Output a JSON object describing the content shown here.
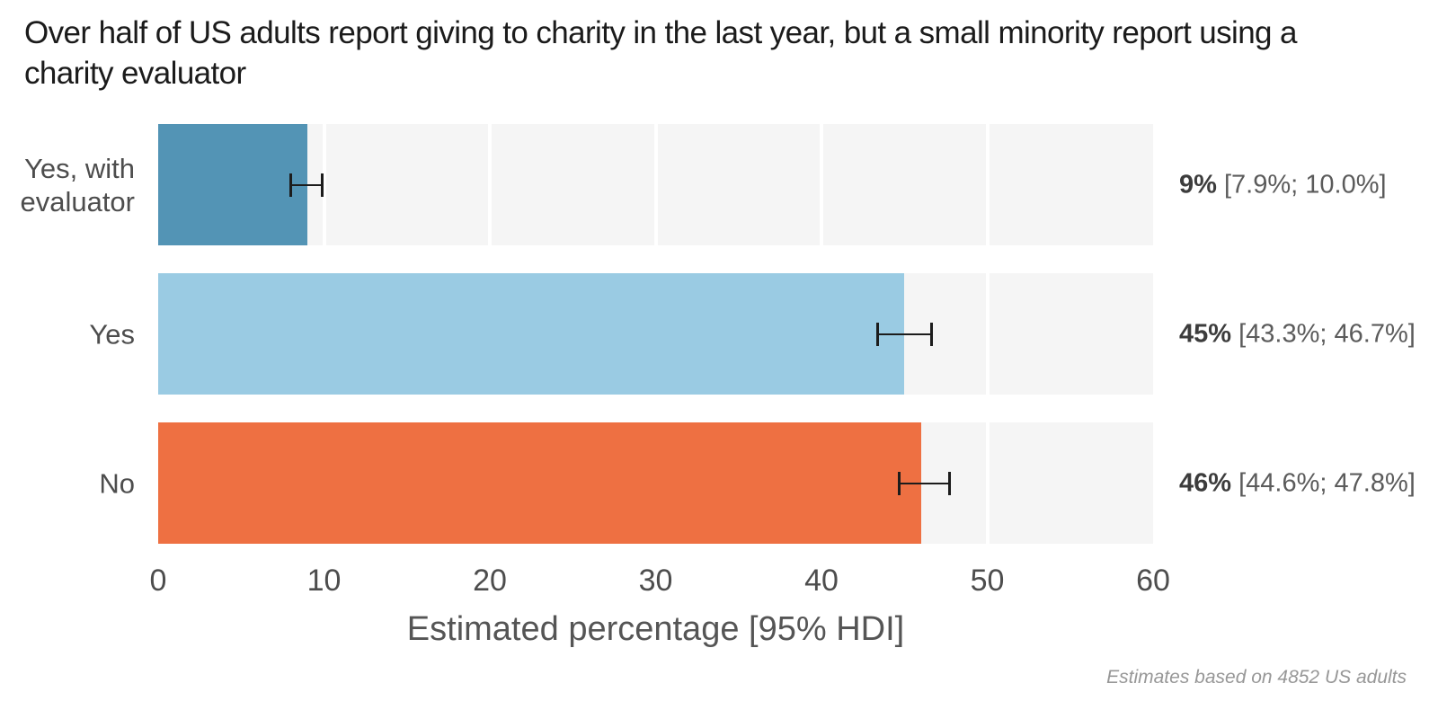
{
  "chart_data": {
    "type": "bar",
    "orientation": "horizontal",
    "title": "Over half of US adults report giving to charity in the last year, but a small minority report using a charity evaluator",
    "categories": [
      "Yes, with\nevaluator",
      "Yes",
      "No"
    ],
    "values": [
      9,
      45,
      46
    ],
    "hdi": [
      [
        7.9,
        10.0
      ],
      [
        43.3,
        46.7
      ],
      [
        44.6,
        47.8
      ]
    ],
    "value_labels": [
      "9%",
      "45%",
      "46%"
    ],
    "hdi_labels": [
      "[7.9%; 10.0%]",
      "[43.3%; 46.7%]",
      "[44.6%; 47.8%]"
    ],
    "xlabel": "Estimated percentage [95% HDI]",
    "xlim": [
      0,
      60
    ],
    "xticks": [
      "0",
      "10",
      "20",
      "30",
      "40",
      "50",
      "60"
    ],
    "grid": "white vertical lines on light-gray track, behind bars",
    "legend": "none",
    "caption": "Estimates based on 4852 US adults",
    "colors": {
      "bars": [
        "#5394B5",
        "#9ACBE3",
        "#EE7042"
      ],
      "track": "#F5F5F5",
      "gridline": "#FFFFFF",
      "errorbar": "#1C1C1C",
      "title_text": "#1B1B1B",
      "axis_text": "#4D4D4D",
      "annotation_value": "#3C3C3C",
      "annotation_range": "#5B5B5B",
      "caption_text": "#979797"
    }
  }
}
